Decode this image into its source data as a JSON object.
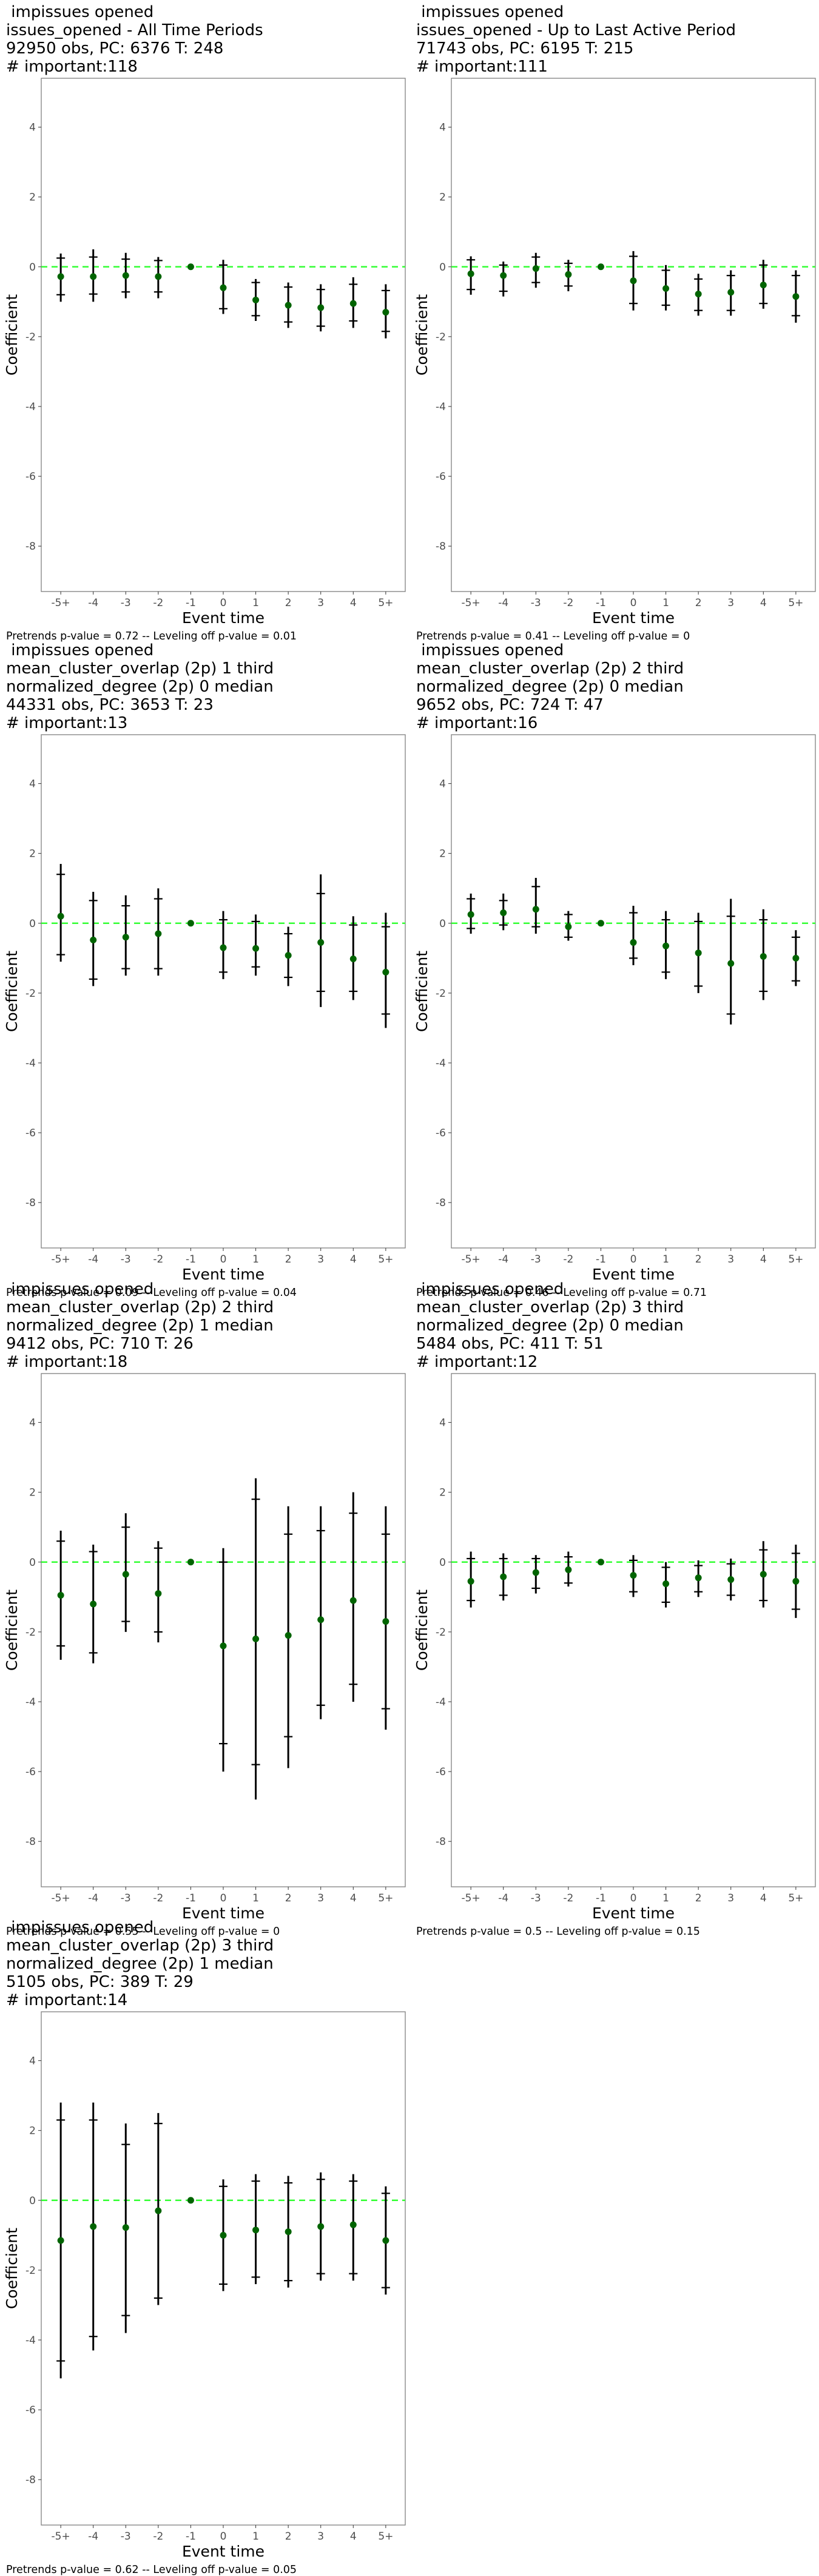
{
  "page": {
    "common": {
      "y_axis_label": "Coefficient",
      "x_axis_label": "Event time",
      "x_ticks": [
        "-5+",
        "-4",
        "-3",
        "-2",
        "-1",
        "0",
        "1",
        "2",
        "3",
        "4",
        "5+"
      ],
      "y_ticks": [
        "-8",
        "-6",
        "-4",
        "-2",
        "0",
        "2",
        "4"
      ],
      "colors": {
        "point": "#006400",
        "zero_line": "#33ff33",
        "whisker": "#000000",
        "frame": "#7f7f7f"
      }
    }
  },
  "chart_data": [
    {
      "type": "scatter",
      "title_lines": [
        " impissues opened",
        "issues_opened - All Time Periods",
        "92950 obs, PC: 6376 T: 248",
        "# important:118"
      ],
      "footer": "Pretrends p-value = 0.72 -- Leveling off p-value = 0.01",
      "xlabel": "Event time",
      "ylabel": "Coefficient",
      "ylim": [
        -9.3,
        5.4
      ],
      "grid": false,
      "x": [
        "-5+",
        "-4",
        "-3",
        "-2",
        "-1",
        "0",
        "1",
        "2",
        "3",
        "4",
        "5+"
      ],
      "estimate": [
        -0.28,
        -0.28,
        -0.25,
        -0.28,
        0,
        -0.6,
        -0.95,
        -1.1,
        -1.17,
        -1.05,
        -1.3
      ],
      "ci95": [
        [
          -1.0,
          0.38
        ],
        [
          -1.0,
          0.5
        ],
        [
          -0.9,
          0.4
        ],
        [
          -0.9,
          0.28
        ],
        [
          0,
          0
        ],
        [
          -1.35,
          0.2
        ],
        [
          -1.55,
          -0.35
        ],
        [
          -1.75,
          -0.45
        ],
        [
          -1.85,
          -0.5
        ],
        [
          -1.75,
          -0.3
        ],
        [
          -2.05,
          -0.5
        ]
      ],
      "ci90": [
        [
          -0.8,
          0.25
        ],
        [
          -0.78,
          0.28
        ],
        [
          -0.72,
          0.22
        ],
        [
          -0.72,
          0.18
        ],
        [
          0,
          0
        ],
        [
          -1.2,
          0.05
        ],
        [
          -1.4,
          -0.45
        ],
        [
          -1.58,
          -0.58
        ],
        [
          -1.7,
          -0.65
        ],
        [
          -1.55,
          -0.5
        ],
        [
          -1.85,
          -0.68
        ]
      ]
    },
    {
      "type": "scatter",
      "title_lines": [
        " impissues opened",
        "issues_opened - Up to Last Active Period",
        "71743 obs, PC: 6195 T: 215",
        "# important:111"
      ],
      "footer": "Pretrends p-value = 0.41 -- Leveling off p-value = 0",
      "xlabel": "Event time",
      "ylabel": "Coefficient",
      "ylim": [
        -9.3,
        5.4
      ],
      "grid": false,
      "x": [
        "-5+",
        "-4",
        "-3",
        "-2",
        "-1",
        "0",
        "1",
        "2",
        "3",
        "4",
        "5+"
      ],
      "estimate": [
        -0.2,
        -0.25,
        -0.05,
        -0.22,
        0,
        -0.4,
        -0.62,
        -0.78,
        -0.73,
        -0.52,
        -0.85
      ],
      "ci95": [
        [
          -0.8,
          0.3
        ],
        [
          -0.85,
          0.15
        ],
        [
          -0.6,
          0.4
        ],
        [
          -0.7,
          0.2
        ],
        [
          0,
          0
        ],
        [
          -1.25,
          0.45
        ],
        [
          -1.25,
          0.05
        ],
        [
          -1.4,
          -0.2
        ],
        [
          -1.4,
          -0.1
        ],
        [
          -1.2,
          0.2
        ],
        [
          -1.6,
          -0.1
        ]
      ],
      "ci90": [
        [
          -0.65,
          0.2
        ],
        [
          -0.7,
          0.05
        ],
        [
          -0.45,
          0.28
        ],
        [
          -0.55,
          0.1
        ],
        [
          0,
          0
        ],
        [
          -1.05,
          0.3
        ],
        [
          -1.1,
          -0.1
        ],
        [
          -1.25,
          -0.35
        ],
        [
          -1.25,
          -0.25
        ],
        [
          -1.05,
          0.05
        ],
        [
          -1.4,
          -0.25
        ]
      ]
    },
    {
      "type": "scatter",
      "title_lines": [
        " impissues opened",
        "mean_cluster_overlap (2p) 1 third",
        "normalized_degree (2p) 0 median",
        "44331 obs, PC: 3653 T: 23",
        "# important:13"
      ],
      "footer": "Pretrends p-value = 0.09 -- Leveling off p-value = 0.04",
      "xlabel": "Event time",
      "ylabel": "Coefficient",
      "ylim": [
        -9.3,
        5.4
      ],
      "grid": false,
      "x": [
        "-5+",
        "-4",
        "-3",
        "-2",
        "-1",
        "0",
        "1",
        "2",
        "3",
        "4",
        "5+"
      ],
      "estimate": [
        0.2,
        -0.48,
        -0.4,
        -0.3,
        0,
        -0.7,
        -0.72,
        -0.92,
        -0.55,
        -1.02,
        -1.4
      ],
      "ci95": [
        [
          -1.1,
          1.7
        ],
        [
          -1.8,
          0.9
        ],
        [
          -1.5,
          0.8
        ],
        [
          -1.5,
          1.0
        ],
        [
          0,
          0
        ],
        [
          -1.6,
          0.35
        ],
        [
          -1.5,
          0.25
        ],
        [
          -1.8,
          -0.1
        ],
        [
          -2.4,
          1.4
        ],
        [
          -2.2,
          0.2
        ],
        [
          -3.0,
          0.3
        ]
      ],
      "ci90": [
        [
          -0.9,
          1.4
        ],
        [
          -1.6,
          0.65
        ],
        [
          -1.3,
          0.5
        ],
        [
          -1.3,
          0.7
        ],
        [
          0,
          0
        ],
        [
          -1.4,
          0.1
        ],
        [
          -1.25,
          0.05
        ],
        [
          -1.55,
          -0.3
        ],
        [
          -1.95,
          0.85
        ],
        [
          -1.95,
          -0.05
        ],
        [
          -2.6,
          -0.1
        ]
      ]
    },
    {
      "type": "scatter",
      "title_lines": [
        " impissues opened",
        "mean_cluster_overlap (2p) 2 third",
        "normalized_degree (2p) 0 median",
        "9652 obs, PC: 724 T: 47",
        "# important:16"
      ],
      "footer": "Pretrends p-value = 0.46 -- Leveling off p-value = 0.71",
      "xlabel": "Event time",
      "ylabel": "Coefficient",
      "ylim": [
        -9.3,
        5.4
      ],
      "grid": false,
      "x": [
        "-5+",
        "-4",
        "-3",
        "-2",
        "-1",
        "0",
        "1",
        "2",
        "3",
        "4",
        "5+"
      ],
      "estimate": [
        0.25,
        0.3,
        0.4,
        -0.1,
        0,
        -0.55,
        -0.65,
        -0.85,
        -1.15,
        -0.95,
        -1.0
      ],
      "ci95": [
        [
          -0.3,
          0.85
        ],
        [
          -0.2,
          0.85
        ],
        [
          -0.3,
          1.3
        ],
        [
          -0.5,
          0.35
        ],
        [
          0,
          0
        ],
        [
          -1.2,
          0.5
        ],
        [
          -1.6,
          0.35
        ],
        [
          -2.0,
          0.3
        ],
        [
          -2.9,
          0.7
        ],
        [
          -2.2,
          0.4
        ],
        [
          -1.8,
          -0.2
        ]
      ],
      "ci90": [
        [
          -0.15,
          0.7
        ],
        [
          -0.05,
          0.65
        ],
        [
          -0.1,
          1.05
        ],
        [
          -0.4,
          0.25
        ],
        [
          0,
          0
        ],
        [
          -1.0,
          0.3
        ],
        [
          -1.4,
          0.1
        ],
        [
          -1.8,
          0.05
        ],
        [
          -2.6,
          0.2
        ],
        [
          -1.95,
          0.1
        ],
        [
          -1.65,
          -0.4
        ]
      ]
    },
    {
      "type": "scatter",
      "title_lines": [
        " impissues opened",
        "mean_cluster_overlap (2p) 2 third",
        "normalized_degree (2p) 1 median",
        "9412 obs, PC: 710 T: 26",
        "# important:18"
      ],
      "footer": "Pretrends p-value = 0.55 -- Leveling off p-value = 0",
      "xlabel": "Event time",
      "ylabel": "Coefficient",
      "ylim": [
        -9.3,
        5.4
      ],
      "grid": false,
      "x": [
        "-5+",
        "-4",
        "-3",
        "-2",
        "-1",
        "0",
        "1",
        "2",
        "3",
        "4",
        "5+"
      ],
      "estimate": [
        -0.95,
        -1.2,
        -0.35,
        -0.9,
        0,
        -2.4,
        -2.2,
        -2.1,
        -1.65,
        -1.1,
        -1.7
      ],
      "ci95": [
        [
          -2.8,
          0.9
        ],
        [
          -2.9,
          0.5
        ],
        [
          -2.0,
          1.4
        ],
        [
          -2.3,
          0.6
        ],
        [
          0,
          0
        ],
        [
          -6.0,
          0.4
        ],
        [
          -6.8,
          2.4
        ],
        [
          -5.9,
          1.6
        ],
        [
          -4.5,
          1.6
        ],
        [
          -4.0,
          2.0
        ],
        [
          -4.8,
          1.6
        ]
      ],
      "ci90": [
        [
          -2.4,
          0.6
        ],
        [
          -2.6,
          0.3
        ],
        [
          -1.7,
          1.0
        ],
        [
          -2.0,
          0.4
        ],
        [
          0,
          0
        ],
        [
          -5.2,
          0.0
        ],
        [
          -5.8,
          1.8
        ],
        [
          -5.0,
          0.8
        ],
        [
          -4.1,
          0.9
        ],
        [
          -3.5,
          1.4
        ],
        [
          -4.2,
          0.8
        ]
      ]
    },
    {
      "type": "scatter",
      "title_lines": [
        " impissues opened",
        "mean_cluster_overlap (2p) 3 third",
        "normalized_degree (2p) 0 median",
        "5484 obs, PC: 411 T: 51",
        "# important:12"
      ],
      "footer": "Pretrends p-value = 0.5 -- Leveling off p-value = 0.15",
      "xlabel": "Event time",
      "ylabel": "Coefficient",
      "ylim": [
        -9.3,
        5.4
      ],
      "grid": false,
      "x": [
        "-5+",
        "-4",
        "-3",
        "-2",
        "-1",
        "0",
        "1",
        "2",
        "3",
        "4",
        "5+"
      ],
      "estimate": [
        -0.55,
        -0.42,
        -0.3,
        -0.22,
        0,
        -0.38,
        -0.62,
        -0.45,
        -0.5,
        -0.35,
        -0.55
      ],
      "ci95": [
        [
          -1.3,
          0.3
        ],
        [
          -1.1,
          0.25
        ],
        [
          -0.9,
          0.2
        ],
        [
          -0.7,
          0.3
        ],
        [
          0,
          0
        ],
        [
          -1.0,
          0.2
        ],
        [
          -1.3,
          0.0
        ],
        [
          -1.0,
          0.05
        ],
        [
          -1.1,
          0.1
        ],
        [
          -1.3,
          0.6
        ],
        [
          -1.6,
          0.5
        ]
      ],
      "ci90": [
        [
          -1.1,
          0.1
        ],
        [
          -0.95,
          0.1
        ],
        [
          -0.75,
          0.1
        ],
        [
          -0.6,
          0.15
        ],
        [
          0,
          0
        ],
        [
          -0.85,
          0.05
        ],
        [
          -1.15,
          -0.15
        ],
        [
          -0.85,
          -0.1
        ],
        [
          -0.95,
          -0.05
        ],
        [
          -1.1,
          0.35
        ],
        [
          -1.35,
          0.25
        ]
      ]
    },
    {
      "type": "scatter",
      "title_lines": [
        " impissues opened",
        "mean_cluster_overlap (2p) 3 third",
        "normalized_degree (2p) 1 median",
        "5105 obs, PC: 389 T: 29",
        "# important:14"
      ],
      "footer": "Pretrends p-value = 0.62 -- Leveling off p-value = 0.05",
      "xlabel": "Event time",
      "ylabel": "Coefficient",
      "ylim": [
        -9.3,
        5.4
      ],
      "grid": false,
      "x": [
        "-5+",
        "-4",
        "-3",
        "-2",
        "-1",
        "0",
        "1",
        "2",
        "3",
        "4",
        "5+"
      ],
      "estimate": [
        -1.15,
        -0.75,
        -0.78,
        -0.3,
        0,
        -1.0,
        -0.85,
        -0.9,
        -0.75,
        -0.7,
        -1.15
      ],
      "ci95": [
        [
          -5.1,
          2.8
        ],
        [
          -4.3,
          2.8
        ],
        [
          -3.8,
          2.2
        ],
        [
          -3.0,
          2.5
        ],
        [
          0,
          0
        ],
        [
          -2.6,
          0.6
        ],
        [
          -2.4,
          0.75
        ],
        [
          -2.5,
          0.7
        ],
        [
          -2.3,
          0.8
        ],
        [
          -2.3,
          0.75
        ],
        [
          -2.7,
          0.4
        ]
      ],
      "ci90": [
        [
          -4.6,
          2.3
        ],
        [
          -3.9,
          2.3
        ],
        [
          -3.3,
          1.6
        ],
        [
          -2.8,
          2.2
        ],
        [
          0,
          0
        ],
        [
          -2.4,
          0.4
        ],
        [
          -2.2,
          0.55
        ],
        [
          -2.3,
          0.5
        ],
        [
          -2.1,
          0.6
        ],
        [
          -2.1,
          0.55
        ],
        [
          -2.5,
          0.2
        ]
      ]
    }
  ]
}
